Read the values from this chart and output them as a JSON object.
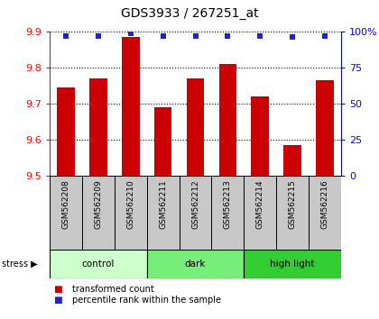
{
  "title": "GDS3933 / 267251_at",
  "samples": [
    "GSM562208",
    "GSM562209",
    "GSM562210",
    "GSM562211",
    "GSM562212",
    "GSM562213",
    "GSM562214",
    "GSM562215",
    "GSM562216"
  ],
  "bar_values": [
    9.745,
    9.77,
    9.885,
    9.69,
    9.77,
    9.81,
    9.72,
    9.585,
    9.765
  ],
  "percentile_values": [
    97,
    97,
    99,
    97,
    97,
    97,
    97,
    96,
    97
  ],
  "bar_color": "#cc0000",
  "dot_color": "#2222cc",
  "ylim": [
    9.5,
    9.9
  ],
  "y2lim": [
    0,
    100
  ],
  "yticks": [
    9.5,
    9.6,
    9.7,
    9.8,
    9.9
  ],
  "y2ticks": [
    0,
    25,
    50,
    75,
    100
  ],
  "y2tick_labels": [
    "0",
    "25",
    "50",
    "75",
    "100%"
  ],
  "groups": [
    {
      "label": "control",
      "start": 0,
      "end": 3,
      "color": "#ccffcc"
    },
    {
      "label": "dark",
      "start": 3,
      "end": 6,
      "color": "#77ee77"
    },
    {
      "label": "high light",
      "start": 6,
      "end": 9,
      "color": "#33cc33"
    }
  ],
  "stress_label": "stress",
  "legend_bar_label": "transformed count",
  "legend_dot_label": "percentile rank within the sample",
  "bar_width": 0.55,
  "sample_box_color": "#c8c8c8",
  "grid_color": "#000000"
}
